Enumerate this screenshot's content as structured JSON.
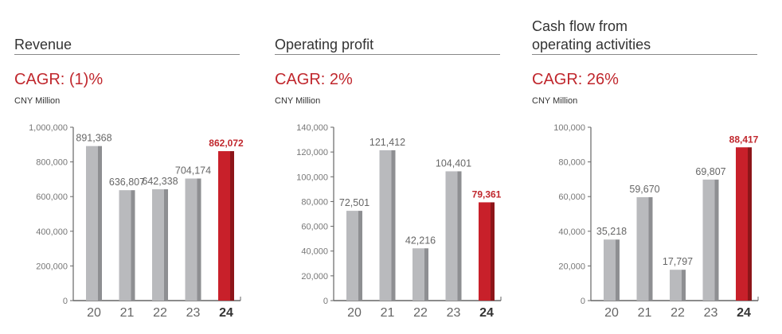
{
  "colors": {
    "bar": "#b9babd",
    "bar_side": "#8e8f92",
    "highlight": "#c8202a",
    "highlight_side": "#8d1519",
    "label": "#666",
    "highlight_label": "#c0272d"
  },
  "chart_data": [
    {
      "type": "bar",
      "title": "Revenue",
      "cagr": "CAGR: (1)%",
      "unit": "CNY Million",
      "categories": [
        "20",
        "21",
        "22",
        "23",
        "24"
      ],
      "values": [
        891368,
        636807,
        642338,
        704174,
        862072
      ],
      "labels": [
        "891,368",
        "636,807",
        "642,338",
        "704,174",
        "862,072"
      ],
      "highlight_index": 4,
      "ylim": [
        0,
        1000000
      ],
      "yticks": [
        0,
        200000,
        400000,
        600000,
        800000,
        1000000
      ],
      "ytick_labels": [
        "0",
        "200,000",
        "400,000",
        "600,000",
        "800,000",
        "1,000,000"
      ]
    },
    {
      "type": "bar",
      "title": "Operating profit",
      "cagr": "CAGR: 2%",
      "unit": "CNY Million",
      "categories": [
        "20",
        "21",
        "22",
        "23",
        "24"
      ],
      "values": [
        72501,
        121412,
        42216,
        104401,
        79361
      ],
      "labels": [
        "72,501",
        "121,412",
        "42,216",
        "104,401",
        "79,361"
      ],
      "highlight_index": 4,
      "ylim": [
        0,
        140000
      ],
      "yticks": [
        0,
        20000,
        40000,
        60000,
        80000,
        100000,
        120000,
        140000
      ],
      "ytick_labels": [
        "0",
        "20,000",
        "40,000",
        "60,000",
        "80,000",
        "100,000",
        "120,000",
        "140,000"
      ]
    },
    {
      "type": "bar",
      "title": "Cash flow from operating activities",
      "title_lines": [
        "Cash flow from",
        "operating activities"
      ],
      "cagr": "CAGR: 26%",
      "unit": "CNY Million",
      "categories": [
        "20",
        "21",
        "22",
        "23",
        "24"
      ],
      "values": [
        35218,
        59670,
        17797,
        69807,
        88417
      ],
      "labels": [
        "35,218",
        "59,670",
        "17,797",
        "69,807",
        "88,417"
      ],
      "highlight_index": 4,
      "ylim": [
        0,
        100000
      ],
      "yticks": [
        0,
        20000,
        40000,
        60000,
        80000,
        100000
      ],
      "ytick_labels": [
        "0",
        "20,000",
        "40,000",
        "60,000",
        "80,000",
        "100,000"
      ]
    }
  ]
}
